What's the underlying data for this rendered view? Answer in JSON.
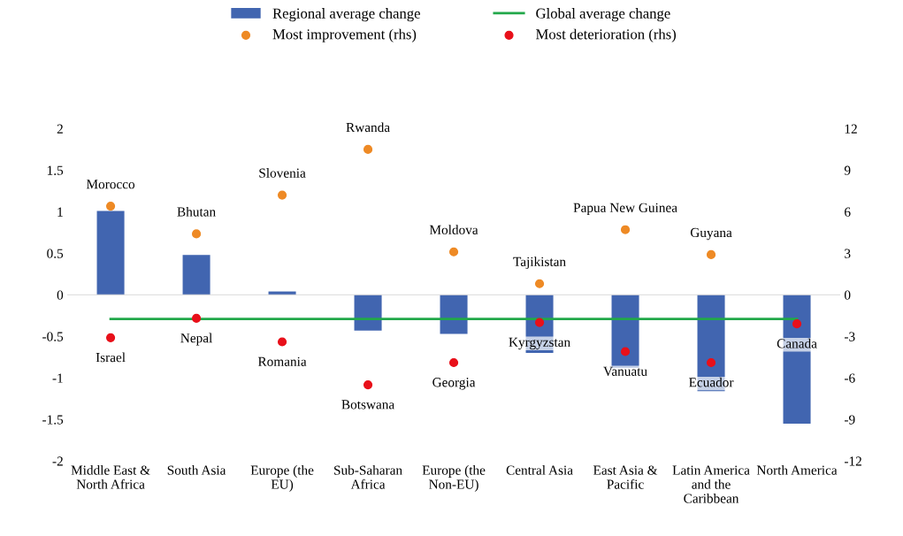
{
  "chart_data": {
    "type": "bar",
    "categories": [
      "Middle East &\nNorth Africa",
      "South Asia",
      "Europe (the\nEU)",
      "Sub-Saharan\nAfrica",
      "Europe (the\nNon-EU)",
      "Central Asia",
      "East Asia &\nPacific",
      "Latin America\nand the\nCaribbean",
      "North America"
    ],
    "series": [
      {
        "name": "Regional average change",
        "color": "#4165b0",
        "values": [
          1.01,
          0.48,
          0.04,
          -0.43,
          -0.47,
          -0.7,
          -0.88,
          -1.16,
          -1.55
        ]
      },
      {
        "name": "Global average change",
        "type": "line",
        "marker": "none",
        "color": "#22a84a",
        "values": [
          -0.29,
          -0.29,
          -0.29,
          -0.29,
          -0.29,
          -0.29,
          -0.29,
          -0.29,
          -0.29
        ]
      },
      {
        "name": "Most improvement (rhs)",
        "type": "scatter",
        "marker": "circle",
        "axis": "y2",
        "color": "#ee8a25",
        "values": [
          6.4,
          4.4,
          7.2,
          10.5,
          3.1,
          0.8,
          4.7,
          2.9,
          null
        ],
        "value_labels": [
          "Morocco",
          "Bhutan",
          "Slovenia",
          "Rwanda",
          "Moldova",
          "Tajikistan",
          "Papua New Guinea",
          "Guyana",
          null
        ]
      },
      {
        "name": "Most deterioration (rhs)",
        "type": "scatter",
        "marker": "circle",
        "axis": "y2",
        "color": "#e8101a",
        "values": [
          -3.1,
          -1.7,
          -3.4,
          -6.5,
          -4.9,
          -2.0,
          -4.1,
          -4.9,
          -2.1
        ],
        "value_labels": [
          "Israel",
          "Nepal",
          "Romania",
          "Botswana",
          "Georgia",
          "Kyrgyzstan",
          "Vanuatu",
          "Ecuador",
          "Canada"
        ]
      }
    ],
    "ylim": [
      -2,
      2
    ],
    "yticks": [
      -2,
      -1.5,
      -1,
      -0.5,
      0,
      0.5,
      1,
      1.5,
      2
    ],
    "y2lim": [
      -12,
      12
    ],
    "y2ticks": [
      -12,
      -9,
      -6,
      -3,
      0,
      3,
      6,
      9,
      12
    ],
    "legend": "top"
  }
}
